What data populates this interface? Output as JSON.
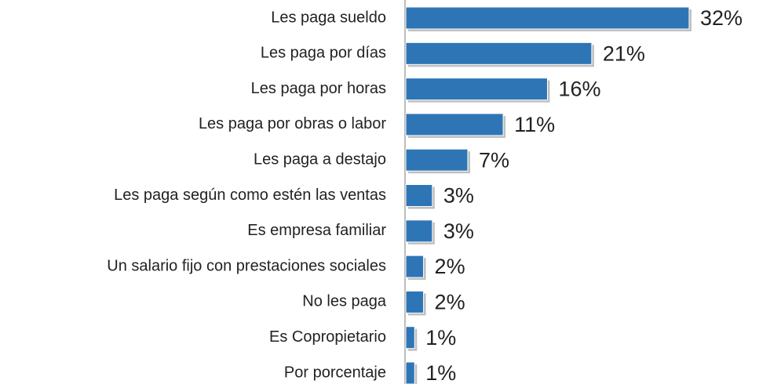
{
  "chart_data": {
    "type": "hbar",
    "categories": [
      "Les paga sueldo",
      "Les paga por días",
      "Les paga por horas",
      "Les paga por obras o labor",
      "Les paga a destajo",
      "Les paga según como estén las ventas",
      "Es empresa familiar",
      "Un salario fijo con prestaciones sociales",
      "No les paga",
      "Es Copropietario",
      "Por porcentaje"
    ],
    "values": [
      32,
      21,
      16,
      11,
      7,
      3,
      3,
      2,
      2,
      1,
      1
    ],
    "value_labels": [
      "32%",
      "21%",
      "16%",
      "11%",
      "7%",
      "3%",
      "3%",
      "2%",
      "2%",
      "1%",
      "1%"
    ],
    "color": "#2e75b6"
  }
}
